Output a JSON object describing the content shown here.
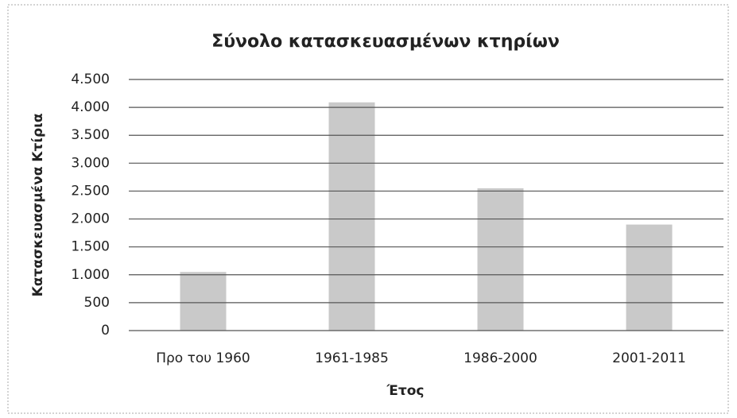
{
  "chart_data": {
    "type": "bar",
    "title": "Σύνολο κατασκευασμένων κτηρίων",
    "x_label": "Έτος",
    "y_label": "Κατασκευασμένα Κτίρια",
    "categories": [
      "Προ του 1960",
      "1961-1985",
      "1986-2000",
      "2001-2011"
    ],
    "values": [
      1050,
      4090,
      2550,
      1900
    ],
    "color": "#c9c9c9",
    "ylim": [
      0,
      4500
    ],
    "yticks": [
      0,
      500,
      {
        "value": 1000,
        "label": "1.000"
      },
      {
        "value": 1500,
        "label": "1.500"
      },
      {
        "value": 2000,
        "label": "2.000"
      },
      {
        "value": 2500,
        "label": "2.500"
      },
      {
        "value": 3000,
        "label": "3.000"
      },
      {
        "value": 3500,
        "label": "3.500"
      },
      {
        "value": 4000,
        "label": "4.000"
      },
      {
        "value": 4500,
        "label": "4.500"
      }
    ],
    "grid": true
  }
}
